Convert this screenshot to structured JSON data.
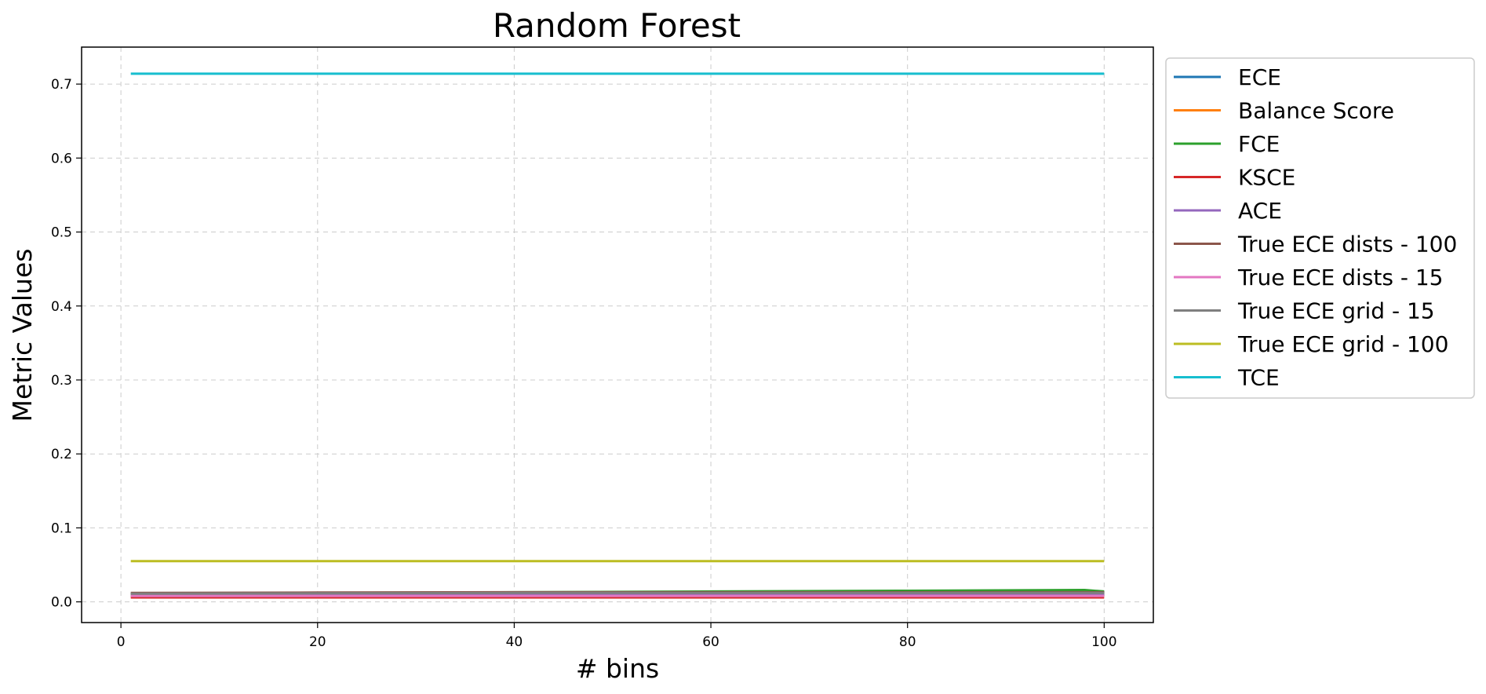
{
  "chart_data": {
    "type": "line",
    "title": "Random Forest",
    "xlabel": "# bins",
    "ylabel": "Metric Values",
    "xlim": [
      -4,
      105
    ],
    "ylim": [
      -0.028,
      0.75
    ],
    "xticks": [
      0,
      20,
      40,
      60,
      80,
      100
    ],
    "yticks": [
      0.0,
      0.1,
      0.2,
      0.3,
      0.4,
      0.5,
      0.6,
      0.7
    ],
    "xtick_labels": [
      "0",
      "20",
      "40",
      "60",
      "80",
      "100"
    ],
    "ytick_labels": [
      "0.0",
      "0.1",
      "0.2",
      "0.3",
      "0.4",
      "0.5",
      "0.6",
      "0.7"
    ],
    "grid": true,
    "legend_position": "outside-right-top",
    "series": [
      {
        "name": "ECE",
        "color": "#1f77b4",
        "x": [
          1,
          100
        ],
        "y": [
          0.009,
          0.009
        ]
      },
      {
        "name": "Balance Score",
        "color": "#ff7f0e",
        "x": [
          1,
          100
        ],
        "y": [
          0.007,
          0.007
        ]
      },
      {
        "name": "FCE",
        "color": "#2ca02c",
        "x": [
          1,
          20,
          40,
          60,
          80,
          98,
          100
        ],
        "y": [
          0.011,
          0.012,
          0.013,
          0.014,
          0.015,
          0.016,
          0.014
        ]
      },
      {
        "name": "KSCE",
        "color": "#d62728",
        "x": [
          1,
          100
        ],
        "y": [
          0.006,
          0.006
        ]
      },
      {
        "name": "ACE",
        "color": "#9467bd",
        "x": [
          1,
          100
        ],
        "y": [
          0.01,
          0.01
        ]
      },
      {
        "name": "True ECE dists - 100",
        "color": "#8c564b",
        "x": [
          1,
          20,
          40,
          60,
          80,
          100
        ],
        "y": [
          0.012,
          0.0125,
          0.013,
          0.013,
          0.013,
          0.013
        ]
      },
      {
        "name": "True ECE dists - 15",
        "color": "#e377c2",
        "x": [
          1,
          100
        ],
        "y": [
          0.008,
          0.008
        ]
      },
      {
        "name": "True ECE grid - 15",
        "color": "#7f7f7f",
        "x": [
          1,
          20,
          40,
          60,
          80,
          100
        ],
        "y": [
          0.011,
          0.0115,
          0.012,
          0.012,
          0.012,
          0.012
        ]
      },
      {
        "name": "True ECE grid - 100",
        "color": "#bcbd22",
        "x": [
          1,
          100
        ],
        "y": [
          0.055,
          0.055
        ]
      },
      {
        "name": "TCE",
        "color": "#17becf",
        "x": [
          1,
          100
        ],
        "y": [
          0.714,
          0.714
        ]
      }
    ]
  }
}
